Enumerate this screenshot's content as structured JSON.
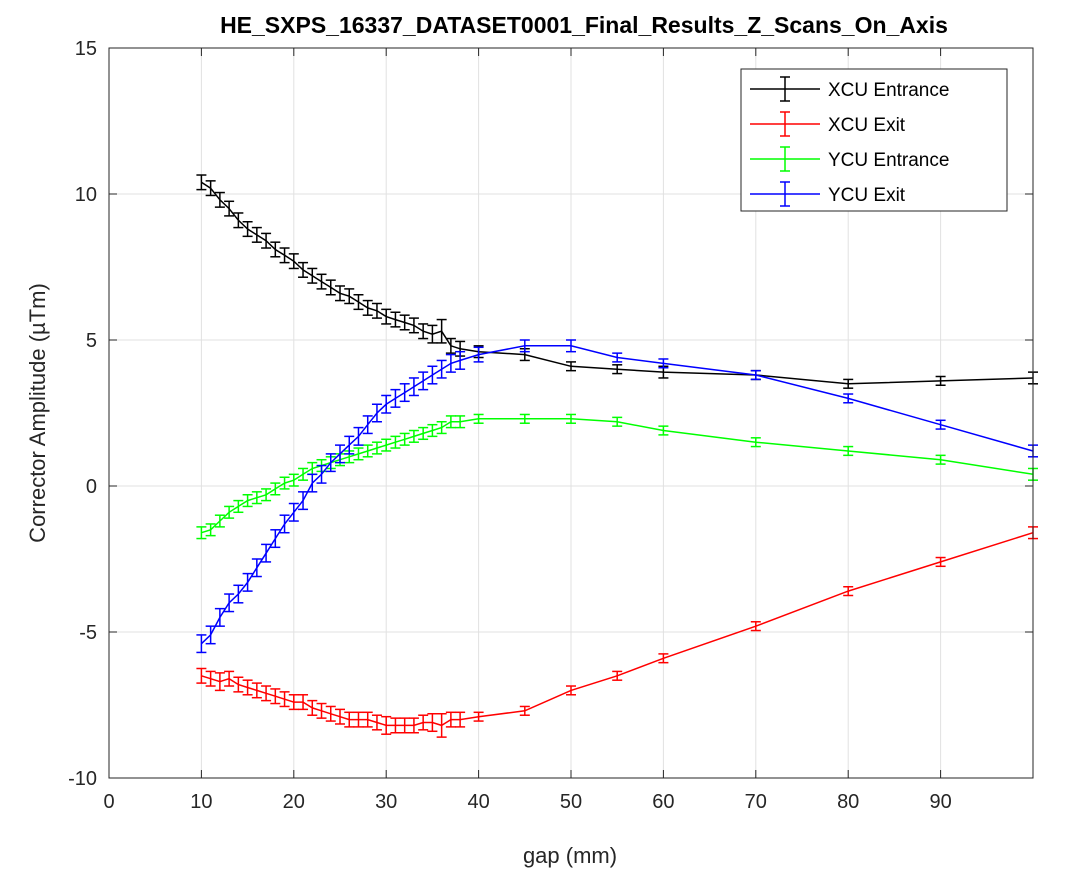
{
  "chart_data": {
    "type": "line",
    "title": "HE_SXPS_16337_DATASET0001_Final_Results_Z_Scans_On_Axis",
    "xlabel": "gap (mm)",
    "ylabel": "Corrector Amplitude (µTm)",
    "xlim": [
      0,
      100
    ],
    "ylim": [
      -10,
      15
    ],
    "x_ticks": [
      0,
      10,
      20,
      30,
      40,
      50,
      60,
      70,
      80,
      90
    ],
    "y_ticks": [
      -10,
      -5,
      0,
      5,
      10,
      15
    ],
    "grid": true,
    "legend_position": "top-right",
    "error_bars": true,
    "x": [
      10,
      11,
      12,
      13,
      14,
      15,
      16,
      17,
      18,
      19,
      20,
      21,
      22,
      23,
      24,
      25,
      26,
      27,
      28,
      29,
      30,
      31,
      32,
      33,
      34,
      35,
      36,
      37,
      38,
      40,
      45,
      50,
      55,
      60,
      70,
      80,
      90,
      100
    ],
    "series": [
      {
        "name": "XCU Entrance",
        "color": "#000000",
        "values": [
          10.4,
          10.2,
          9.8,
          9.5,
          9.1,
          8.8,
          8.6,
          8.4,
          8.1,
          7.9,
          7.7,
          7.4,
          7.2,
          7.0,
          6.8,
          6.6,
          6.5,
          6.3,
          6.1,
          6.0,
          5.8,
          5.7,
          5.6,
          5.5,
          5.3,
          5.2,
          5.3,
          4.8,
          4.7,
          4.6,
          4.5,
          4.1,
          4.0,
          3.9,
          3.8,
          3.5,
          3.6,
          3.7
        ],
        "errors": [
          0.25,
          0.25,
          0.25,
          0.25,
          0.25,
          0.25,
          0.25,
          0.25,
          0.25,
          0.25,
          0.25,
          0.25,
          0.25,
          0.25,
          0.25,
          0.25,
          0.25,
          0.25,
          0.25,
          0.25,
          0.25,
          0.25,
          0.25,
          0.25,
          0.25,
          0.3,
          0.4,
          0.25,
          0.25,
          0.2,
          0.2,
          0.15,
          0.15,
          0.2,
          0.15,
          0.15,
          0.15,
          0.2
        ]
      },
      {
        "name": "XCU Exit",
        "color": "#ff0000",
        "values": [
          -6.5,
          -6.6,
          -6.7,
          -6.6,
          -6.8,
          -6.9,
          -7.0,
          -7.1,
          -7.2,
          -7.3,
          -7.4,
          -7.4,
          -7.6,
          -7.7,
          -7.8,
          -7.9,
          -8.0,
          -8.0,
          -8.0,
          -8.1,
          -8.2,
          -8.2,
          -8.2,
          -8.2,
          -8.1,
          -8.1,
          -8.2,
          -8.0,
          -8.0,
          -7.9,
          -7.7,
          -7.0,
          -6.5,
          -5.9,
          -4.8,
          -3.6,
          -2.6,
          -1.6
        ],
        "errors": [
          0.25,
          0.25,
          0.3,
          0.25,
          0.25,
          0.25,
          0.25,
          0.25,
          0.25,
          0.25,
          0.25,
          0.25,
          0.25,
          0.25,
          0.25,
          0.25,
          0.25,
          0.25,
          0.25,
          0.25,
          0.3,
          0.25,
          0.25,
          0.25,
          0.25,
          0.3,
          0.4,
          0.25,
          0.25,
          0.15,
          0.15,
          0.15,
          0.15,
          0.15,
          0.15,
          0.15,
          0.15,
          0.2
        ]
      },
      {
        "name": "YCU Entrance",
        "color": "#00ff00",
        "values": [
          -1.6,
          -1.5,
          -1.2,
          -0.9,
          -0.7,
          -0.5,
          -0.4,
          -0.3,
          -0.1,
          0.1,
          0.2,
          0.4,
          0.6,
          0.7,
          0.8,
          0.9,
          1.0,
          1.1,
          1.2,
          1.3,
          1.4,
          1.5,
          1.6,
          1.7,
          1.8,
          1.9,
          2.0,
          2.2,
          2.2,
          2.3,
          2.3,
          2.3,
          2.2,
          1.9,
          1.5,
          1.2,
          0.9,
          0.4
        ],
        "errors": [
          0.2,
          0.2,
          0.2,
          0.2,
          0.2,
          0.2,
          0.2,
          0.2,
          0.2,
          0.2,
          0.2,
          0.2,
          0.2,
          0.2,
          0.2,
          0.2,
          0.2,
          0.2,
          0.2,
          0.2,
          0.2,
          0.2,
          0.2,
          0.2,
          0.2,
          0.2,
          0.2,
          0.2,
          0.2,
          0.15,
          0.15,
          0.15,
          0.15,
          0.15,
          0.15,
          0.15,
          0.15,
          0.2
        ]
      },
      {
        "name": "YCU Exit",
        "color": "#0000ff",
        "values": [
          -5.4,
          -5.1,
          -4.5,
          -4.0,
          -3.7,
          -3.3,
          -2.8,
          -2.3,
          -1.8,
          -1.3,
          -0.9,
          -0.5,
          0.1,
          0.4,
          0.8,
          1.1,
          1.4,
          1.7,
          2.1,
          2.5,
          2.8,
          3.0,
          3.2,
          3.4,
          3.6,
          3.8,
          4.0,
          4.2,
          4.3,
          4.5,
          4.8,
          4.8,
          4.4,
          4.2,
          3.8,
          3.0,
          2.1,
          1.2
        ],
        "errors": [
          0.3,
          0.3,
          0.3,
          0.3,
          0.3,
          0.3,
          0.3,
          0.3,
          0.3,
          0.3,
          0.3,
          0.3,
          0.3,
          0.3,
          0.3,
          0.3,
          0.3,
          0.3,
          0.3,
          0.3,
          0.3,
          0.3,
          0.3,
          0.3,
          0.3,
          0.3,
          0.3,
          0.3,
          0.3,
          0.25,
          0.2,
          0.2,
          0.15,
          0.15,
          0.15,
          0.15,
          0.15,
          0.2
        ]
      }
    ]
  }
}
